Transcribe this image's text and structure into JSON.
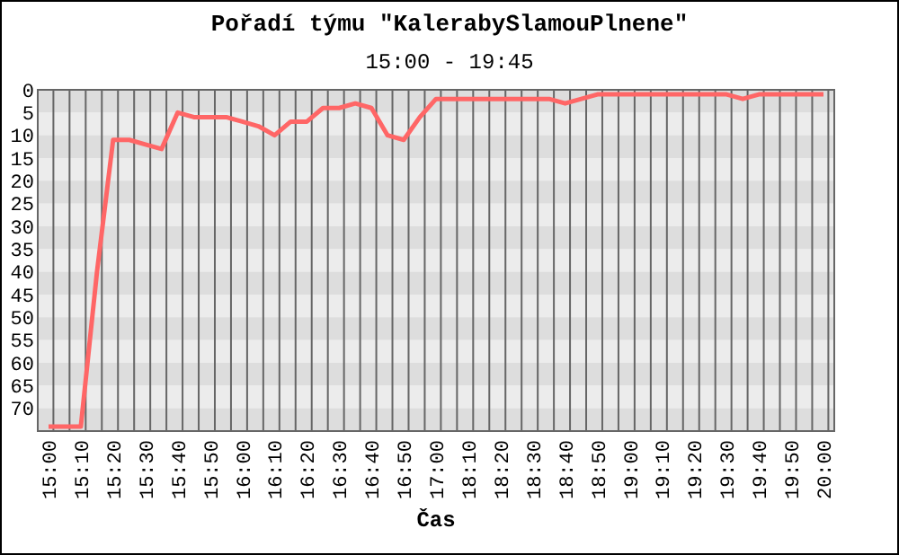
{
  "chart_data": {
    "type": "line",
    "title": "Pořadí týmu \"KalerabySlamouPlnene\"",
    "subtitle": "15:00 - 19:45",
    "xlabel": "Čas",
    "categories": [
      "15:00",
      null,
      "15:10",
      null,
      "15:20",
      null,
      "15:30",
      null,
      "15:40",
      null,
      "15:50",
      null,
      "16:00",
      null,
      "16:10",
      null,
      "16:20",
      null,
      "16:30",
      null,
      "16:40",
      null,
      "16:50",
      null,
      "17:00",
      null,
      "18:10",
      null,
      "18:20",
      null,
      "18:30",
      null,
      "18:40",
      null,
      "18:50",
      null,
      "19:00",
      null,
      "19:10",
      null,
      "19:20",
      null,
      "19:30",
      null,
      "19:40",
      null,
      "19:50",
      null,
      "20:00"
    ],
    "series": [
      {
        "color": "#ff6666",
        "values": [
          74,
          74,
          74,
          40,
          11,
          11,
          12,
          13,
          5,
          6,
          6,
          6,
          7,
          8,
          10,
          7,
          7,
          4,
          4,
          3,
          4,
          10,
          11,
          6,
          2,
          2,
          2,
          2,
          2,
          2,
          2,
          2,
          3,
          2,
          1,
          1,
          1,
          1,
          1,
          1,
          1,
          1,
          1,
          2,
          1,
          1,
          1,
          1,
          1
        ]
      }
    ],
    "ylim": [
      75,
      0
    ],
    "yticks": [
      0,
      5,
      10,
      15,
      20,
      25,
      30,
      35,
      40,
      45,
      50,
      55,
      60,
      65,
      70
    ],
    "grid": true,
    "marker": "none",
    "line_style": "solid"
  }
}
